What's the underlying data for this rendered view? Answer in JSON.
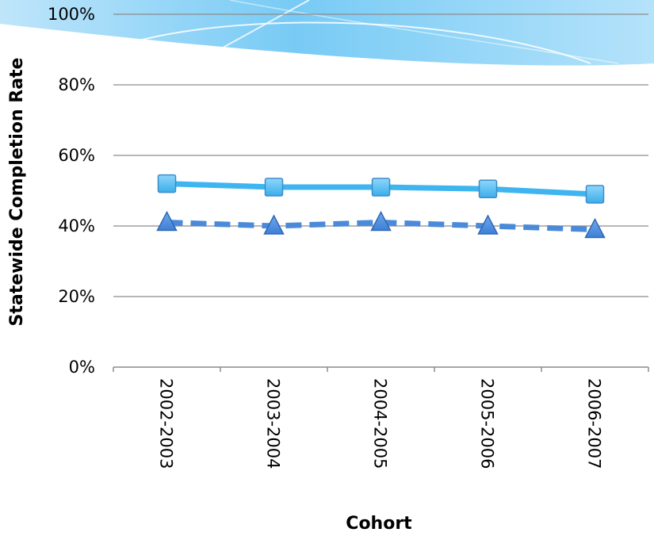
{
  "chart_data": {
    "type": "line",
    "xlabel": "Cohort",
    "ylabel": "Statewide Completion Rate",
    "categories": [
      "2002-2003",
      "2003-2004",
      "2004-2005",
      "2005-2006",
      "2006-2007"
    ],
    "ylim": [
      0,
      100
    ],
    "yticks": [
      "0%",
      "20%",
      "40%",
      "60%",
      "80%",
      "100%"
    ],
    "grid": true,
    "legend": "none",
    "series": [
      {
        "values": [
          52,
          51,
          51,
          50.5,
          49
        ],
        "marker": "square",
        "line_style": "solid",
        "color": "#3fb5f0"
      },
      {
        "values": [
          41,
          40,
          41,
          40,
          39
        ],
        "marker": "triangle",
        "line_style": "dashed",
        "color": "#4a8ad8"
      }
    ]
  }
}
